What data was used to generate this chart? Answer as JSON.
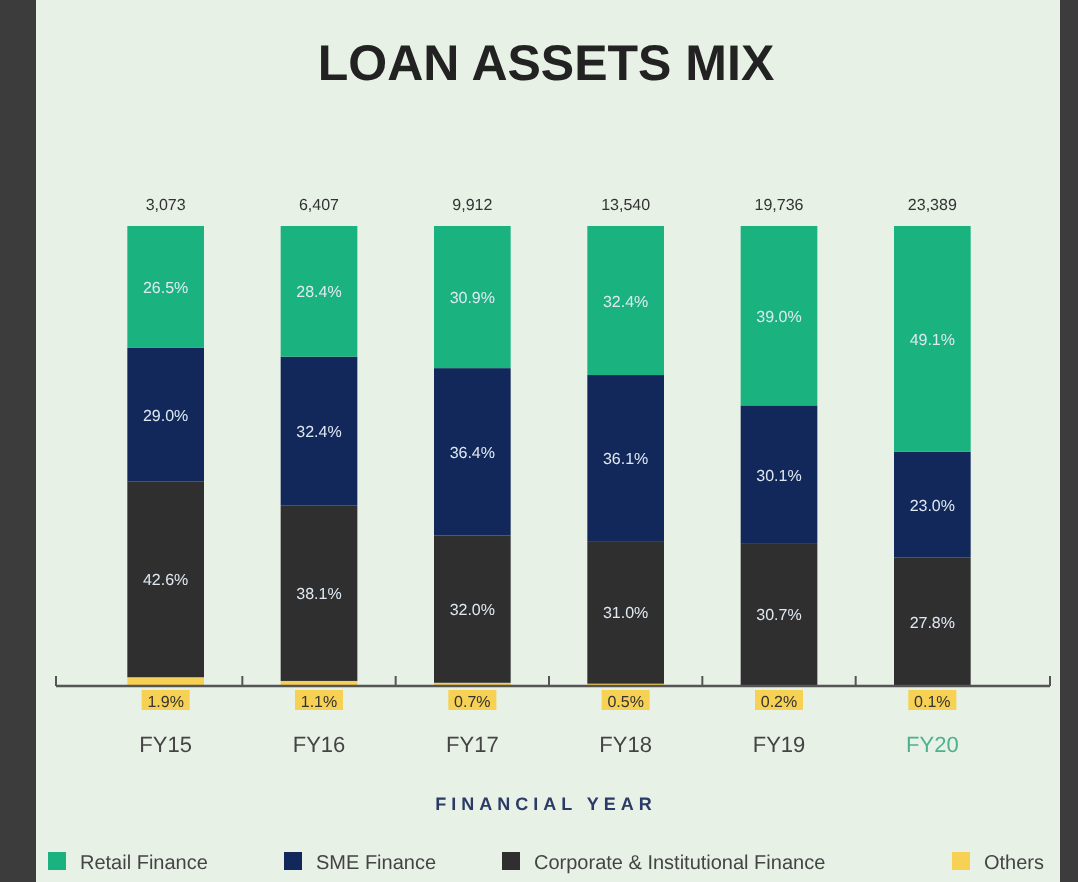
{
  "chart_data": {
    "type": "bar",
    "title": "LOAN ASSETS MIX",
    "xlabel": "FINANCIAL YEAR",
    "categories": [
      "FY15",
      "FY16",
      "FY17",
      "FY18",
      "FY19",
      "FY20"
    ],
    "stacked": true,
    "legend": "bottom",
    "series": [
      {
        "name": "Others",
        "color": "#f7d154",
        "values": [
          1.9,
          1.1,
          0.7,
          0.5,
          0.2,
          0.1
        ],
        "value_labels": [
          "1.9%",
          "1.1%",
          "0.7%",
          "0.5%",
          "0.2%",
          "0.1%"
        ]
      },
      {
        "name": "Corporate & Institutional Finance",
        "color": "#2f2f2f",
        "values": [
          42.6,
          38.1,
          32.0,
          31.0,
          30.7,
          27.8
        ],
        "value_labels": [
          "42.6%",
          "38.1%",
          "32.0%",
          "31.0%",
          "30.7%",
          "27.8%"
        ]
      },
      {
        "name": "SME Finance",
        "color": "#13285a",
        "values": [
          29.0,
          32.4,
          36.4,
          36.1,
          30.1,
          23.0
        ],
        "value_labels": [
          "29.0%",
          "32.4%",
          "36.4%",
          "36.1%",
          "30.1%",
          "23.0%"
        ]
      },
      {
        "name": "Retail Finance",
        "color": "#1ab27e",
        "values": [
          26.5,
          28.4,
          30.9,
          32.4,
          39.0,
          49.1
        ],
        "value_labels": [
          "26.5%",
          "28.4%",
          "30.9%",
          "32.4%",
          "39.0%",
          "49.1%"
        ]
      }
    ],
    "annotations": [
      {
        "text": "3,073",
        "x": "FY15",
        "y": 100
      },
      {
        "text": "6,407",
        "x": "FY16",
        "y": 100
      },
      {
        "text": "9,912",
        "x": "FY17",
        "y": 100
      },
      {
        "text": "13,540",
        "x": "FY18",
        "y": 100
      },
      {
        "text": "19,736",
        "x": "FY19",
        "y": 100
      },
      {
        "text": "23,389",
        "x": "FY20",
        "y": 100
      }
    ]
  }
}
